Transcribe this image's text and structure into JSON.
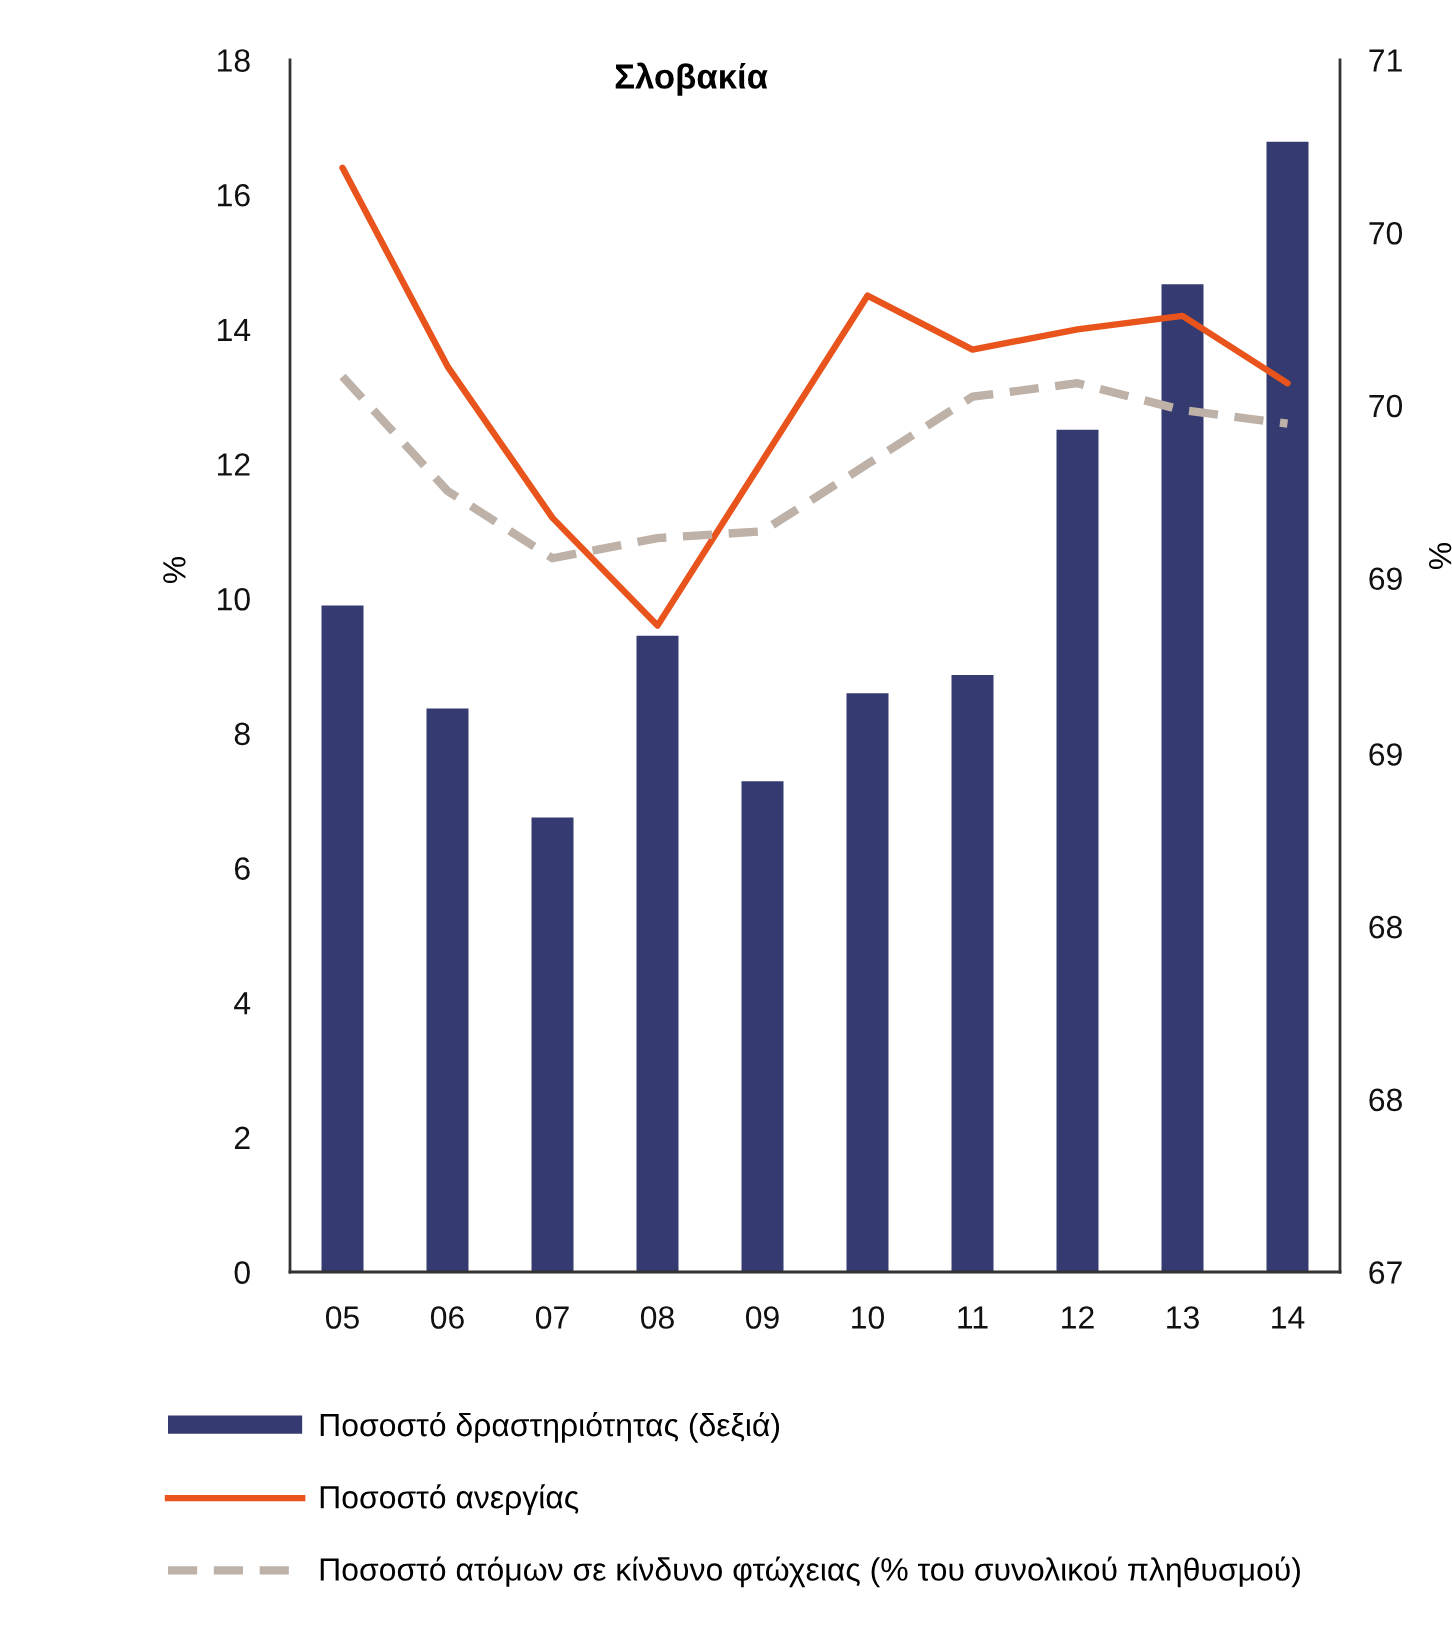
{
  "chart_data": {
    "type": "bar",
    "title": "Σλοβακία",
    "ylabel": "%",
    "y2label": "%",
    "categories": [
      "05",
      "06",
      "07",
      "08",
      "09",
      "10",
      "11",
      "12",
      "13",
      "14"
    ],
    "series": [
      {
        "name": "Ποσοστό δραστηριότητας (δεξιά)",
        "axis": "y2",
        "color": "#353a70",
        "values": [
          69.2,
          68.86,
          68.5,
          69.1,
          68.62,
          68.91,
          68.97,
          69.78,
          70.26,
          70.73
        ]
      },
      {
        "name": "Ποσοστό ανεργίας",
        "type": "line",
        "color": "#e8541c",
        "values": [
          16.4,
          13.45,
          11.2,
          9.6,
          12.05,
          14.5,
          13.7,
          14.0,
          14.2,
          13.2
        ]
      },
      {
        "name": "Ποσοστό ατόμων σε κίνδυνο φτώχειας (% του συνολικού πληθυσμού)",
        "type": "line",
        "line_style": "dashed",
        "color": "#bdb1a8",
        "values": [
          13.3,
          11.6,
          10.6,
          10.9,
          11.0,
          12.0,
          13.0,
          13.2,
          12.8,
          12.6
        ]
      }
    ],
    "ylim": [
      0,
      18
    ],
    "yticks": [
      0,
      2,
      4,
      6,
      8,
      10,
      12,
      14,
      16,
      18
    ],
    "y2lim": [
      67,
      71
    ],
    "y2ticks": [
      67,
      {
        "value": 67.57,
        "label": "68"
      },
      {
        "value": 68.14,
        "label": "68"
      },
      {
        "value": 68.71,
        "label": "69"
      },
      {
        "value": 69.29,
        "label": "69"
      },
      {
        "value": 69.86,
        "label": "70"
      },
      {
        "value": 70.43,
        "label": "70"
      },
      71
    ],
    "legend": "bottom"
  }
}
